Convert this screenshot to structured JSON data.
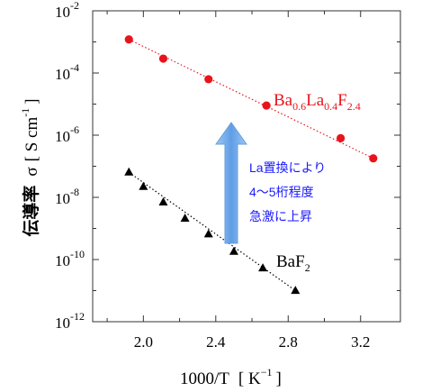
{
  "chart_data": {
    "type": "scatter",
    "x_label_main": "1000/T",
    "x_label_unit_prefix": "[ K",
    "x_label_unit_exp": "−1",
    "x_label_unit_suffix": "]",
    "y_label_main": "伝導率",
    "y_label_symbol": "σ",
    "y_label_unit_prefix": "[ S cm",
    "y_label_unit_exp": "-1",
    "y_label_unit_suffix": "]",
    "y_scale": "log",
    "xlim": [
      1.72,
      3.42
    ],
    "ylim_exp": [
      -12,
      -2
    ],
    "x_ticks": [
      "2.0",
      "2.4",
      "2.8",
      "3.2"
    ],
    "x_tick_values": [
      2.0,
      2.4,
      2.8,
      3.2
    ],
    "y_ticks": [
      {
        "base": "10",
        "exp": "-2",
        "value_exp": -2
      },
      {
        "base": "10",
        "exp": "-4",
        "value_exp": -4
      },
      {
        "base": "10",
        "exp": "-6",
        "value_exp": -6
      },
      {
        "base": "10",
        "exp": "-8",
        "value_exp": -8
      },
      {
        "base": "10",
        "exp": "-10",
        "value_exp": -10
      },
      {
        "base": "10",
        "exp": "-12",
        "value_exp": -12
      }
    ],
    "grid": false,
    "series": [
      {
        "name": "Ba0.6La0.4F2.4",
        "color": "#e8141c",
        "marker": "circle",
        "line_style": "dotted",
        "points": [
          {
            "x": 1.92,
            "y": 0.0012
          },
          {
            "x": 2.11,
            "y": 0.00029
          },
          {
            "x": 2.36,
            "y": 6.3e-05
          },
          {
            "x": 2.68,
            "y": 9e-06
          },
          {
            "x": 3.09,
            "y": 8e-07
          },
          {
            "x": 3.27,
            "y": 1.8e-07
          }
        ]
      },
      {
        "name": "BaF2",
        "color": "#000000",
        "marker": "triangle",
        "line_style": "dotted",
        "points": [
          {
            "x": 1.92,
            "y": 6.4e-08
          },
          {
            "x": 2.0,
            "y": 2.2e-08
          },
          {
            "x": 2.11,
            "y": 7e-09
          },
          {
            "x": 2.23,
            "y": 2.1e-09
          },
          {
            "x": 2.36,
            "y": 6.6e-10
          },
          {
            "x": 2.5,
            "y": 1.8e-10
          },
          {
            "x": 2.66,
            "y": 5.3e-11
          },
          {
            "x": 2.84,
            "y": 1e-11
          }
        ]
      }
    ],
    "labels": {
      "red_series": {
        "base1": "Ba",
        "sub1": "0.6",
        "base2": "La",
        "sub2": "0.4",
        "base3": "F",
        "sub3": "2.4"
      },
      "black_series": {
        "base": "BaF",
        "sub": "2"
      }
    },
    "annotation": {
      "lines": [
        "La置換により",
        "4～5桁程度",
        "急激に上昇"
      ],
      "color": "#1a1aff",
      "arrow_color": "#7fb0ee"
    }
  }
}
